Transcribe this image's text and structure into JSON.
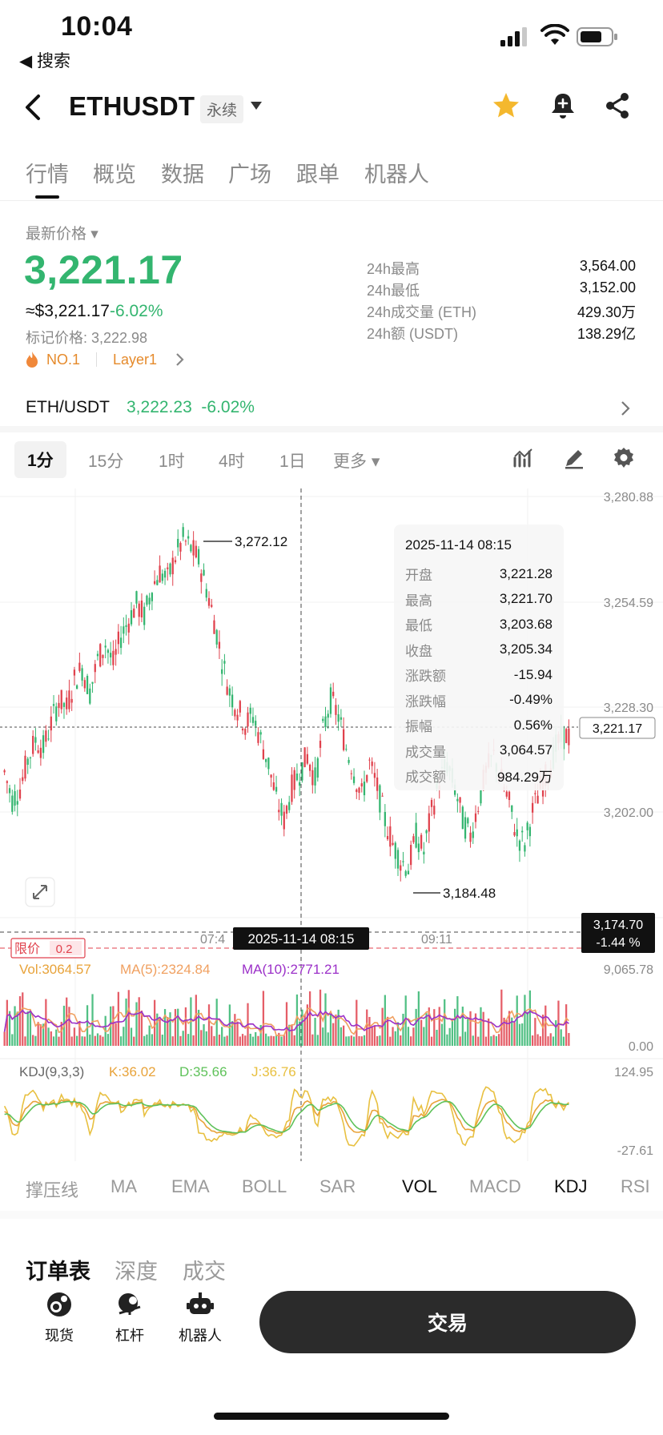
{
  "status_bar": {
    "time": "10:04",
    "back_app": "◀ 搜索"
  },
  "header": {
    "symbol": "ETHUSDT",
    "contract_tag": "永续"
  },
  "tabs": [
    {
      "label": "行情",
      "active": true
    },
    {
      "label": "概览",
      "active": false
    },
    {
      "label": "数据",
      "active": false
    },
    {
      "label": "广场",
      "active": false
    },
    {
      "label": "跟单",
      "active": false
    },
    {
      "label": "机器人",
      "active": false
    }
  ],
  "price": {
    "latest_label": "最新价格",
    "last": "3,221.17",
    "usd_equiv": "≈$3,221.17",
    "change_pct": "-6.02%",
    "mark_price": "标记价格: 3,222.98",
    "rank": "NO.1",
    "category": "Layer1"
  },
  "stats": [
    {
      "label": "24h最高",
      "value": "3,564.00"
    },
    {
      "label": "24h最低",
      "value": "3,152.00"
    },
    {
      "label": "24h成交量 (ETH)",
      "value": "429.30万"
    },
    {
      "label": "24h额 (USDT)",
      "value": "138.29亿"
    }
  ],
  "spot": {
    "pair": "ETH/USDT",
    "price": "3,222.23",
    "change": "-6.02%"
  },
  "intervals": [
    {
      "label": "1分",
      "active": true
    },
    {
      "label": "15分",
      "active": false
    },
    {
      "label": "1时",
      "active": false
    },
    {
      "label": "4时",
      "active": false
    },
    {
      "label": "1日",
      "active": false
    },
    {
      "label": "更多",
      "active": false
    }
  ],
  "chart_data": {
    "type": "candlestick",
    "price_axis_ticks": [
      "3,280.88",
      "3,254.59",
      "3,228.30",
      "3,202.00"
    ],
    "price_axis_values": [
      3280.88,
      3254.59,
      3228.3,
      3202.0
    ],
    "high_marker": "3,272.12",
    "low_marker": "3,184.48",
    "last_price_tag": "3,221.17",
    "crosshair_price": "3,174.70",
    "crosshair_change": "-1.44 %",
    "limit_label": "限价",
    "limit_qty": "0.2",
    "time_ticks": [
      "07:4",
      "09:11"
    ],
    "crosshair_time": "2025-11-14 08:15",
    "close_series": [
      3212,
      3205,
      3208,
      3215,
      3220,
      3218,
      3224,
      3230,
      3228,
      3235,
      3238,
      3232,
      3240,
      3244,
      3239,
      3246,
      3250,
      3254,
      3251,
      3258,
      3262,
      3260,
      3266,
      3270,
      3268,
      3265,
      3258,
      3250,
      3240,
      3232,
      3228,
      3224,
      3226,
      3220,
      3214,
      3205,
      3200,
      3208,
      3212,
      3216,
      3210,
      3222,
      3230,
      3226,
      3218,
      3212,
      3206,
      3214,
      3208,
      3200,
      3194,
      3190,
      3188,
      3196,
      3192,
      3202,
      3210,
      3214,
      3208,
      3200,
      3196,
      3204,
      3212,
      3216,
      3210,
      3204,
      3196,
      3194,
      3202,
      3208,
      3212,
      3218,
      3221
    ],
    "volume_axis": [
      "9,065.78",
      "0.00"
    ],
    "volume_legend": {
      "vol": "Vol:3064.57",
      "ma5": "MA(5):2324.84",
      "ma10": "MA(10):2771.21"
    },
    "kdj_axis": [
      "124.95",
      "-27.61"
    ],
    "kdj_legend": {
      "name": "KDJ(9,3,3)",
      "k": "K:36.02",
      "d": "D:35.66",
      "j": "J:36.76"
    },
    "colors": {
      "up": "#33b56f",
      "down": "#e0424d",
      "ma5": "#f0a060",
      "ma10": "#9b30c8",
      "k": "#e8a33a",
      "d": "#5fc25a",
      "j": "#e8c040"
    }
  },
  "tooltip": {
    "date": "2025-11-14 08:15",
    "rows": [
      {
        "label": "开盘",
        "value": "3,221.28",
        "tone": ""
      },
      {
        "label": "最高",
        "value": "3,221.70",
        "tone": ""
      },
      {
        "label": "最低",
        "value": "3,203.68",
        "tone": ""
      },
      {
        "label": "收盘",
        "value": "3,205.34",
        "tone": ""
      },
      {
        "label": "涨跌额",
        "value": "-15.94",
        "tone": "green"
      },
      {
        "label": "涨跌幅",
        "value": "-0.49%",
        "tone": "green"
      },
      {
        "label": "振幅",
        "value": "0.56%",
        "tone": ""
      },
      {
        "label": "成交量",
        "value": "3,064.57",
        "tone": ""
      },
      {
        "label": "成交额",
        "value": "984.29万",
        "tone": ""
      }
    ]
  },
  "indicators": [
    {
      "label": "撑压线",
      "on": false
    },
    {
      "label": "MA",
      "on": false
    },
    {
      "label": "EMA",
      "on": false
    },
    {
      "label": "BOLL",
      "on": false
    },
    {
      "label": "SAR",
      "on": false
    },
    {
      "label": "VOL",
      "on": true
    },
    {
      "label": "MACD",
      "on": false
    },
    {
      "label": "KDJ",
      "on": true
    },
    {
      "label": "RSI",
      "on": false
    }
  ],
  "book_tabs": [
    {
      "label": "订单表",
      "active": true
    },
    {
      "label": "深度",
      "active": false
    },
    {
      "label": "成交",
      "active": false
    }
  ],
  "bottom": {
    "items": [
      {
        "label": "现货",
        "icon": "spot-icon"
      },
      {
        "label": "杠杆",
        "icon": "margin-icon"
      },
      {
        "label": "机器人",
        "icon": "robot-icon"
      }
    ],
    "trade_button": "交易"
  }
}
